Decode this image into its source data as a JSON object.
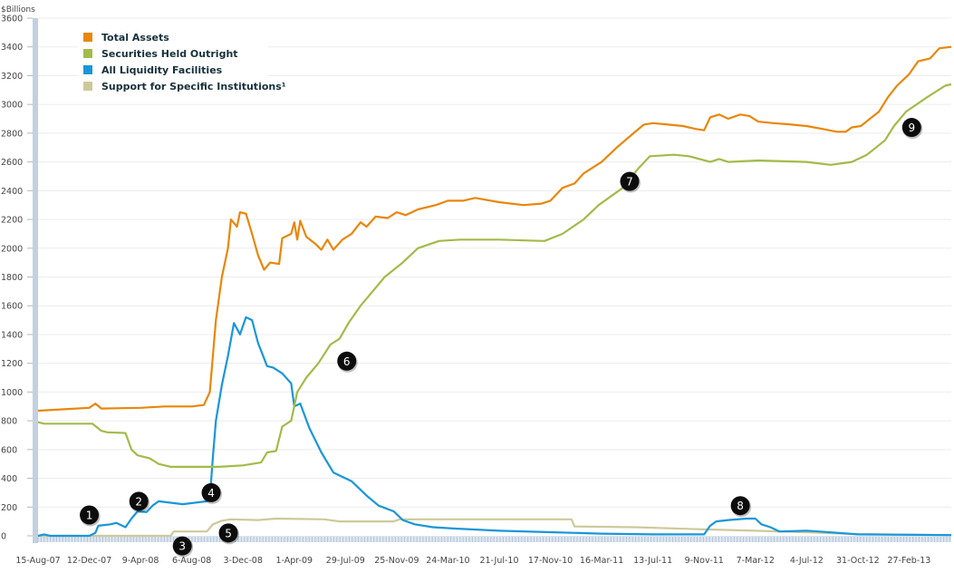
{
  "chart_data": {
    "type": "line",
    "title": "",
    "ylabel": "$Billions",
    "xlabel": "",
    "ylim": [
      0,
      3600
    ],
    "yticks": [
      0,
      200,
      400,
      600,
      800,
      1000,
      1200,
      1400,
      1600,
      1800,
      2000,
      2200,
      2400,
      2600,
      2800,
      3000,
      3200,
      3400,
      3600
    ],
    "xlim": [
      "2007-08-15",
      "2013-06-05"
    ],
    "xtick_labels": [
      "15-Aug-07",
      "12-Dec-07",
      "9-Apr-08",
      "6-Aug-08",
      "3-Dec-08",
      "1-Apr-09",
      "29-Jul-09",
      "25-Nov-09",
      "24-Mar-10",
      "21-Jul-10",
      "17-Nov-10",
      "16-Mar-11",
      "13-Jul-11",
      "9-Nov-11",
      "7-Mar-12",
      "4-Jul-12",
      "31-Oct-12",
      "27-Feb-13"
    ],
    "xtick_dates": [
      "2007-08-15",
      "2007-12-12",
      "2008-04-09",
      "2008-08-06",
      "2008-12-03",
      "2009-04-01",
      "2009-07-29",
      "2009-11-25",
      "2010-03-24",
      "2010-07-21",
      "2010-11-17",
      "2011-03-16",
      "2011-07-13",
      "2011-11-09",
      "2012-03-07",
      "2012-07-04",
      "2012-10-31",
      "2013-02-27"
    ],
    "grid": true,
    "legend_placement": "top-left",
    "series": [
      {
        "name": "Total Assets",
        "color": "#e8870c",
        "points": [
          [
            "2007-08-15",
            870
          ],
          [
            "2007-10-15",
            880
          ],
          [
            "2007-12-12",
            890
          ],
          [
            "2007-12-26",
            920
          ],
          [
            "2008-01-09",
            885
          ],
          [
            "2008-04-09",
            890
          ],
          [
            "2008-06-04",
            900
          ],
          [
            "2008-08-06",
            900
          ],
          [
            "2008-09-03",
            910
          ],
          [
            "2008-09-17",
            1000
          ],
          [
            "2008-10-01",
            1500
          ],
          [
            "2008-10-15",
            1800
          ],
          [
            "2008-10-29",
            2000
          ],
          [
            "2008-11-05",
            2200
          ],
          [
            "2008-11-19",
            2150
          ],
          [
            "2008-11-26",
            2250
          ],
          [
            "2008-12-10",
            2240
          ],
          [
            "2008-12-24",
            2100
          ],
          [
            "2009-01-07",
            1950
          ],
          [
            "2009-01-21",
            1850
          ],
          [
            "2009-02-04",
            1900
          ],
          [
            "2009-02-25",
            1890
          ],
          [
            "2009-03-04",
            2070
          ],
          [
            "2009-03-25",
            2100
          ],
          [
            "2009-04-01",
            2180
          ],
          [
            "2009-04-08",
            2060
          ],
          [
            "2009-04-15",
            2190
          ],
          [
            "2009-04-29",
            2080
          ],
          [
            "2009-05-20",
            2030
          ],
          [
            "2009-06-03",
            1990
          ],
          [
            "2009-06-17",
            2060
          ],
          [
            "2009-07-01",
            1990
          ],
          [
            "2009-07-22",
            2060
          ],
          [
            "2009-08-12",
            2100
          ],
          [
            "2009-09-02",
            2180
          ],
          [
            "2009-09-16",
            2150
          ],
          [
            "2009-10-07",
            2220
          ],
          [
            "2009-11-04",
            2210
          ],
          [
            "2009-11-25",
            2250
          ],
          [
            "2009-12-16",
            2230
          ],
          [
            "2010-01-13",
            2270
          ],
          [
            "2010-02-24",
            2300
          ],
          [
            "2010-03-24",
            2330
          ],
          [
            "2010-04-28",
            2330
          ],
          [
            "2010-05-26",
            2350
          ],
          [
            "2010-07-21",
            2320
          ],
          [
            "2010-09-15",
            2300
          ],
          [
            "2010-10-27",
            2310
          ],
          [
            "2010-11-17",
            2330
          ],
          [
            "2010-12-15",
            2420
          ],
          [
            "2011-01-12",
            2450
          ],
          [
            "2011-02-02",
            2520
          ],
          [
            "2011-03-16",
            2600
          ],
          [
            "2011-04-20",
            2700
          ],
          [
            "2011-05-25",
            2790
          ],
          [
            "2011-06-22",
            2860
          ],
          [
            "2011-07-13",
            2870
          ],
          [
            "2011-08-17",
            2860
          ],
          [
            "2011-09-21",
            2850
          ],
          [
            "2011-10-19",
            2830
          ],
          [
            "2011-11-09",
            2820
          ],
          [
            "2011-11-23",
            2910
          ],
          [
            "2011-12-14",
            2930
          ],
          [
            "2012-01-04",
            2900
          ],
          [
            "2012-02-01",
            2930
          ],
          [
            "2012-02-22",
            2920
          ],
          [
            "2012-03-14",
            2880
          ],
          [
            "2012-04-18",
            2870
          ],
          [
            "2012-05-30",
            2860
          ],
          [
            "2012-07-04",
            2850
          ],
          [
            "2012-08-08",
            2830
          ],
          [
            "2012-09-12",
            2810
          ],
          [
            "2012-10-03",
            2810
          ],
          [
            "2012-10-17",
            2840
          ],
          [
            "2012-11-07",
            2850
          ],
          [
            "2012-11-28",
            2900
          ],
          [
            "2012-12-19",
            2950
          ],
          [
            "2013-01-09",
            3050
          ],
          [
            "2013-01-30",
            3130
          ],
          [
            "2013-02-27",
            3210
          ],
          [
            "2013-03-20",
            3300
          ],
          [
            "2013-04-17",
            3320
          ],
          [
            "2013-05-08",
            3390
          ],
          [
            "2013-06-05",
            3400
          ]
        ]
      },
      {
        "name": "Securities Held Outright",
        "color": "#a2bb4a",
        "points": [
          [
            "2007-08-15",
            790
          ],
          [
            "2007-08-29",
            780
          ],
          [
            "2007-12-19",
            780
          ],
          [
            "2008-01-09",
            730
          ],
          [
            "2008-01-23",
            720
          ],
          [
            "2008-03-05",
            715
          ],
          [
            "2008-03-19",
            600
          ],
          [
            "2008-04-02",
            560
          ],
          [
            "2008-04-30",
            540
          ],
          [
            "2008-05-21",
            500
          ],
          [
            "2008-06-18",
            480
          ],
          [
            "2008-10-08",
            480
          ],
          [
            "2008-12-03",
            490
          ],
          [
            "2009-01-14",
            510
          ],
          [
            "2009-01-28",
            580
          ],
          [
            "2009-02-18",
            590
          ],
          [
            "2009-03-04",
            760
          ],
          [
            "2009-03-25",
            800
          ],
          [
            "2009-04-08",
            1000
          ],
          [
            "2009-04-29",
            1100
          ],
          [
            "2009-05-27",
            1200
          ],
          [
            "2009-06-24",
            1330
          ],
          [
            "2009-07-15",
            1370
          ],
          [
            "2009-08-05",
            1480
          ],
          [
            "2009-09-02",
            1600
          ],
          [
            "2009-09-30",
            1700
          ],
          [
            "2009-10-28",
            1800
          ],
          [
            "2009-12-09",
            1900
          ],
          [
            "2010-01-13",
            2000
          ],
          [
            "2010-03-03",
            2050
          ],
          [
            "2010-04-21",
            2060
          ],
          [
            "2010-07-21",
            2060
          ],
          [
            "2010-11-03",
            2050
          ],
          [
            "2010-12-15",
            2100
          ],
          [
            "2011-02-02",
            2200
          ],
          [
            "2011-03-09",
            2300
          ],
          [
            "2011-05-04",
            2420
          ],
          [
            "2011-06-08",
            2550
          ],
          [
            "2011-07-06",
            2640
          ],
          [
            "2011-08-31",
            2650
          ],
          [
            "2011-10-05",
            2640
          ],
          [
            "2011-11-23",
            2600
          ],
          [
            "2011-12-14",
            2620
          ],
          [
            "2012-01-04",
            2600
          ],
          [
            "2012-03-14",
            2610
          ],
          [
            "2012-07-04",
            2600
          ],
          [
            "2012-08-29",
            2580
          ],
          [
            "2012-10-17",
            2600
          ],
          [
            "2012-11-21",
            2650
          ],
          [
            "2013-01-02",
            2750
          ],
          [
            "2013-01-23",
            2850
          ],
          [
            "2013-02-20",
            2950
          ],
          [
            "2013-04-10",
            3050
          ],
          [
            "2013-05-22",
            3130
          ],
          [
            "2013-06-05",
            3140
          ]
        ]
      },
      {
        "name": "All Liquidity Facilities",
        "color": "#1a96d8",
        "points": [
          [
            "2007-08-15",
            0
          ],
          [
            "2007-08-29",
            10
          ],
          [
            "2007-09-12",
            0
          ],
          [
            "2007-12-12",
            0
          ],
          [
            "2007-12-26",
            20
          ],
          [
            "2008-01-02",
            70
          ],
          [
            "2008-01-30",
            80
          ],
          [
            "2008-02-13",
            90
          ],
          [
            "2008-03-05",
            60
          ],
          [
            "2008-03-19",
            120
          ],
          [
            "2008-04-02",
            170
          ],
          [
            "2008-04-23",
            165
          ],
          [
            "2008-05-07",
            210
          ],
          [
            "2008-05-21",
            240
          ],
          [
            "2008-06-18",
            230
          ],
          [
            "2008-07-16",
            220
          ],
          [
            "2008-08-13",
            230
          ],
          [
            "2008-09-10",
            240
          ],
          [
            "2008-09-17",
            260
          ],
          [
            "2008-09-24",
            550
          ],
          [
            "2008-10-01",
            800
          ],
          [
            "2008-10-15",
            1050
          ],
          [
            "2008-10-29",
            1250
          ],
          [
            "2008-11-12",
            1480
          ],
          [
            "2008-11-26",
            1400
          ],
          [
            "2008-12-10",
            1520
          ],
          [
            "2008-12-24",
            1500
          ],
          [
            "2009-01-07",
            1340
          ],
          [
            "2009-01-28",
            1180
          ],
          [
            "2009-02-11",
            1170
          ],
          [
            "2009-03-04",
            1130
          ],
          [
            "2009-03-25",
            1060
          ],
          [
            "2009-04-01",
            900
          ],
          [
            "2009-04-15",
            920
          ],
          [
            "2009-05-06",
            750
          ],
          [
            "2009-06-03",
            580
          ],
          [
            "2009-07-01",
            440
          ],
          [
            "2009-08-12",
            380
          ],
          [
            "2009-09-16",
            280
          ],
          [
            "2009-10-14",
            210
          ],
          [
            "2009-11-18",
            170
          ],
          [
            "2009-12-09",
            110
          ],
          [
            "2010-01-06",
            80
          ],
          [
            "2010-02-17",
            60
          ],
          [
            "2010-04-14",
            50
          ],
          [
            "2010-07-21",
            35
          ],
          [
            "2010-11-17",
            25
          ],
          [
            "2011-03-16",
            15
          ],
          [
            "2011-07-13",
            10
          ],
          [
            "2011-11-09",
            10
          ],
          [
            "2011-11-23",
            70
          ],
          [
            "2011-12-07",
            100
          ],
          [
            "2012-01-04",
            110
          ],
          [
            "2012-02-15",
            120
          ],
          [
            "2012-03-07",
            120
          ],
          [
            "2012-03-21",
            80
          ],
          [
            "2012-04-11",
            60
          ],
          [
            "2012-05-02",
            30
          ],
          [
            "2012-07-04",
            35
          ],
          [
            "2012-08-01",
            30
          ],
          [
            "2012-10-31",
            10
          ],
          [
            "2013-06-05",
            5
          ]
        ]
      },
      {
        "name": "Support for Specific Institutions",
        "color": "#cdc99b",
        "points": [
          [
            "2007-08-15",
            0
          ],
          [
            "2008-06-18",
            0
          ],
          [
            "2008-06-25",
            30
          ],
          [
            "2008-09-10",
            30
          ],
          [
            "2008-09-24",
            80
          ],
          [
            "2008-10-15",
            105
          ],
          [
            "2008-11-05",
            115
          ],
          [
            "2009-01-07",
            110
          ],
          [
            "2009-02-18",
            120
          ],
          [
            "2009-06-10",
            115
          ],
          [
            "2009-07-15",
            100
          ],
          [
            "2009-11-18",
            100
          ],
          [
            "2009-12-02",
            115
          ],
          [
            "2010-11-24",
            115
          ],
          [
            "2011-01-05",
            115
          ],
          [
            "2011-01-12",
            65
          ],
          [
            "2011-06-01",
            60
          ],
          [
            "2011-11-09",
            45
          ],
          [
            "2012-03-07",
            35
          ],
          [
            "2012-06-27",
            25
          ],
          [
            "2012-10-31",
            12
          ],
          [
            "2013-06-05",
            5
          ]
        ]
      }
    ],
    "annotations": [
      {
        "label": "1",
        "date": "2007-12-12",
        "value": 145
      },
      {
        "label": "2",
        "date": "2008-04-05",
        "value": 240
      },
      {
        "label": "3",
        "date": "2008-07-15",
        "value": -70
      },
      {
        "label": "4",
        "date": "2008-09-20",
        "value": 300
      },
      {
        "label": "5",
        "date": "2008-10-30",
        "value": 20
      },
      {
        "label": "6",
        "date": "2009-08-01",
        "value": 1215
      },
      {
        "label": "7",
        "date": "2011-05-20",
        "value": 2465
      },
      {
        "label": "8",
        "date": "2012-02-01",
        "value": 210
      },
      {
        "label": "9",
        "date": "2013-03-05",
        "value": 2840
      }
    ],
    "legend": [
      "Total Assets",
      "Securities Held Outright",
      "All Liquidity Facilities",
      "Support for Specific Institutions¹"
    ]
  }
}
